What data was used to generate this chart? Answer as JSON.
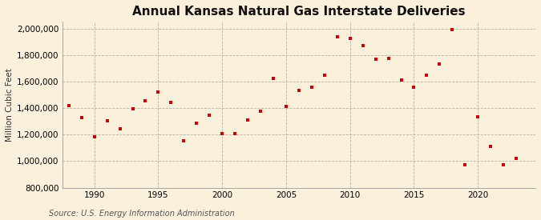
{
  "title": "Annual Kansas Natural Gas Interstate Deliveries",
  "ylabel": "Million Cubic Feet",
  "source": "Source: U.S. Energy Information Administration",
  "background_color": "#FAF0DC",
  "plot_bg_color": "#FAF0DC",
  "marker_color": "#CC0000",
  "marker": "s",
  "marker_size": 3.5,
  "years": [
    1988,
    1989,
    1990,
    1991,
    1992,
    1993,
    1994,
    1995,
    1996,
    1997,
    1998,
    1999,
    2000,
    2001,
    2002,
    2003,
    2004,
    2005,
    2006,
    2007,
    2008,
    2009,
    2010,
    2011,
    2012,
    2013,
    2014,
    2015,
    2016,
    2017,
    2018,
    2019,
    2020,
    2021,
    2022,
    2023
  ],
  "values": [
    1420000,
    1330000,
    1185000,
    1305000,
    1245000,
    1395000,
    1455000,
    1520000,
    1440000,
    1155000,
    1285000,
    1345000,
    1205000,
    1205000,
    1310000,
    1375000,
    1625000,
    1410000,
    1535000,
    1560000,
    1650000,
    1940000,
    1925000,
    1870000,
    1770000,
    1775000,
    1610000,
    1560000,
    1650000,
    1730000,
    1990000,
    975000,
    1335000,
    1110000,
    975000,
    1020000
  ],
  "xlim": [
    1987.5,
    2024.5
  ],
  "ylim": [
    800000,
    2050000
  ],
  "yticks": [
    800000,
    1000000,
    1200000,
    1400000,
    1600000,
    1800000,
    2000000
  ],
  "xticks": [
    1990,
    1995,
    2000,
    2005,
    2010,
    2015,
    2020
  ],
  "grid_color": "#B0A090",
  "title_fontsize": 11,
  "label_fontsize": 7.5,
  "tick_fontsize": 7.5,
  "source_fontsize": 7
}
